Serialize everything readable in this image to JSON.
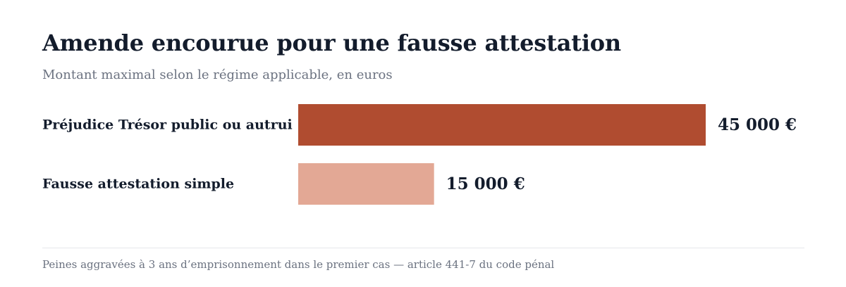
{
  "title": "Amende encourue pour une fausse attestation",
  "subtitle": "Montant maximal selon le régime applicable, en euros",
  "footnote": "Peines aggravées à 3 ans d’emprisonnement dans le premier cas — article 441-7 du code pénal",
  "chart_data": {
    "type": "bar",
    "orientation": "horizontal",
    "title": "Amende encourue pour une fausse attestation",
    "subtitle": "Montant maximal selon le régime applicable, en euros",
    "categories": [
      "Préjudice Trésor public ou autrui",
      "Fausse attestation simple"
    ],
    "values": [
      45000,
      15000
    ],
    "value_labels": [
      "45 000 €",
      "15 000 €"
    ],
    "colors": [
      "#b04c30",
      "#e3a895"
    ],
    "xlim": [
      0,
      45000
    ],
    "grid": false,
    "legend": "none"
  }
}
